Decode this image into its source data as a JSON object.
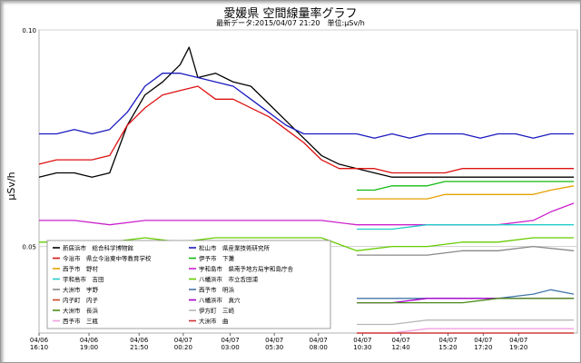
{
  "chart_data": {
    "type": "line",
    "title": "愛媛県 空間線量率グラフ",
    "subtitle": "最新データ:2015/04/07 21:20　単位:μSv/h",
    "ylabel": "μSv/h",
    "xlabel": "",
    "ylim": [
      0.03,
      0.1
    ],
    "yticks": [
      {
        "label": "0.10",
        "value": 0.1
      },
      {
        "label": "0.05",
        "value": 0.05
      }
    ],
    "x_range_hours": [
      0,
      30.5
    ],
    "xticks": [
      {
        "date": "04/06",
        "time": "16:10",
        "hour": 0
      },
      {
        "date": "04/06",
        "time": "19:00",
        "hour": 2.83
      },
      {
        "date": "04/06",
        "time": "21:50",
        "hour": 5.67
      },
      {
        "date": "04/07",
        "time": "00:20",
        "hour": 8.17
      },
      {
        "date": "04/07",
        "time": "03:00",
        "hour": 10.83
      },
      {
        "date": "04/07",
        "time": "05:30",
        "hour": 13.33
      },
      {
        "date": "04/07",
        "time": "08:00",
        "hour": 15.83
      },
      {
        "date": "04/07",
        "time": "10:30",
        "hour": 18.33
      },
      {
        "date": "04/07",
        "time": "12:40",
        "hour": 20.5
      },
      {
        "date": "04/07",
        "time": "15:20",
        "hour": 23.17
      },
      {
        "date": "04/07",
        "time": "17:20",
        "hour": 25.17
      },
      {
        "date": "04/07",
        "time": "19:20",
        "hour": 27.17
      }
    ],
    "grid": "horizontal",
    "legend_position": "lower-left",
    "series": [
      {
        "name": "新居浜市　総合科学博物館",
        "color": "#000000",
        "x": [
          0,
          1,
          2,
          3,
          4,
          5,
          6,
          7,
          8,
          8.5,
          9,
          10,
          11,
          12,
          13,
          14,
          15,
          16,
          17,
          18,
          19,
          20,
          21,
          22,
          23,
          24,
          25,
          26,
          27,
          28,
          29,
          30.3
        ],
        "values": [
          0.066,
          0.067,
          0.067,
          0.066,
          0.067,
          0.078,
          0.085,
          0.088,
          0.092,
          0.096,
          0.089,
          0.09,
          0.088,
          0.087,
          0.083,
          0.079,
          0.075,
          0.071,
          0.069,
          0.068,
          0.067,
          0.066,
          0.066,
          0.066,
          0.066,
          0.066,
          0.066,
          0.066,
          0.066,
          0.066,
          0.066,
          0.066
        ]
      },
      {
        "name": "松山市　県産業技術研究所",
        "color": "#1a1abf",
        "x": [
          0,
          1,
          2,
          3,
          4,
          5,
          6,
          7,
          8,
          9,
          10,
          11,
          12,
          13,
          14,
          15,
          16,
          17,
          18,
          19,
          20,
          21,
          22,
          23,
          24,
          25,
          26,
          27,
          28,
          29,
          30.3
        ],
        "values": [
          0.076,
          0.076,
          0.077,
          0.076,
          0.077,
          0.081,
          0.087,
          0.09,
          0.09,
          0.089,
          0.088,
          0.087,
          0.084,
          0.081,
          0.078,
          0.076,
          0.076,
          0.076,
          0.076,
          0.075,
          0.076,
          0.075,
          0.076,
          0.076,
          0.076,
          0.075,
          0.076,
          0.076,
          0.075,
          0.076,
          0.076
        ]
      },
      {
        "name": "今治市　県立今治東中等教育学校",
        "color": "#dd1111",
        "x": [
          0,
          1,
          2,
          3,
          4,
          5,
          6,
          7,
          8,
          9,
          10,
          11,
          12,
          13,
          14,
          15,
          16,
          17,
          18,
          19,
          20,
          21,
          22,
          23,
          24,
          25,
          26,
          27,
          28,
          29,
          30.3
        ],
        "values": [
          0.069,
          0.07,
          0.07,
          0.07,
          0.071,
          0.078,
          0.082,
          0.085,
          0.086,
          0.087,
          0.084,
          0.084,
          0.082,
          0.08,
          0.077,
          0.074,
          0.07,
          0.068,
          0.068,
          0.068,
          0.067,
          0.067,
          0.067,
          0.067,
          0.068,
          0.068,
          0.068,
          0.068,
          0.068,
          0.068,
          0.068
        ]
      },
      {
        "name": "伊予市　下灘",
        "color": "#11bb11",
        "x": [
          18,
          19,
          20,
          21,
          22,
          23,
          24,
          25,
          26,
          27,
          28,
          29,
          30.3
        ],
        "values": [
          0.063,
          0.063,
          0.064,
          0.064,
          0.064,
          0.065,
          0.065,
          0.065,
          0.065,
          0.065,
          0.065,
          0.065,
          0.065
        ]
      },
      {
        "name": "西予市　野村",
        "color": "#e6a000",
        "x": [
          18,
          19,
          20,
          21,
          22,
          23,
          24,
          25,
          26,
          27,
          28,
          29,
          30.3
        ],
        "values": [
          0.061,
          0.061,
          0.061,
          0.061,
          0.061,
          0.062,
          0.062,
          0.062,
          0.062,
          0.062,
          0.062,
          0.063,
          0.064
        ]
      },
      {
        "name": "宇和島市　県南予地方局宇和島庁舎",
        "color": "#cc22cc",
        "x": [
          0,
          2,
          4,
          6,
          8,
          10,
          12,
          14,
          16,
          18,
          20,
          22,
          24,
          26,
          28,
          29,
          30.3
        ],
        "values": [
          0.056,
          0.056,
          0.055,
          0.056,
          0.056,
          0.056,
          0.056,
          0.056,
          0.056,
          0.055,
          0.055,
          0.055,
          0.055,
          0.055,
          0.056,
          0.058,
          0.06
        ]
      },
      {
        "name": "宇和島市　吉田",
        "color": "#22cccc",
        "x": [
          18,
          20,
          22,
          24,
          26,
          28,
          30.3
        ],
        "values": [
          0.054,
          0.054,
          0.055,
          0.055,
          0.055,
          0.055,
          0.055
        ]
      },
      {
        "name": "八幡浜市　市立舌田浦",
        "color": "#66cc00",
        "x": [
          0,
          2,
          4,
          6,
          8,
          10,
          12,
          14,
          16,
          18,
          20,
          22,
          24,
          26,
          28,
          30.3
        ],
        "values": [
          0.051,
          0.051,
          0.051,
          0.052,
          0.051,
          0.052,
          0.052,
          0.052,
          0.052,
          0.049,
          0.05,
          0.05,
          0.051,
          0.051,
          0.052,
          0.052
        ]
      },
      {
        "name": "大洲市　宇野",
        "color": "#888888",
        "x": [
          18,
          20,
          22,
          24,
          26,
          28,
          30.3
        ],
        "values": [
          0.048,
          0.048,
          0.048,
          0.049,
          0.049,
          0.05,
          0.049
        ]
      },
      {
        "name": "西予市　明浜",
        "color": "#4477aa",
        "x": [
          18,
          20,
          22,
          24,
          26,
          28,
          29,
          30.3
        ],
        "values": [
          0.038,
          0.038,
          0.038,
          0.038,
          0.038,
          0.039,
          0.04,
          0.039
        ]
      },
      {
        "name": "内子町　内子",
        "color": "#cc4422",
        "x": [
          18,
          20,
          22,
          24,
          26,
          28,
          30.3
        ],
        "values": [
          0.027,
          0.027,
          0.027,
          0.027,
          0.027,
          0.028,
          0.028
        ]
      },
      {
        "name": "八幡浜市　真穴",
        "color": "#aa00cc",
        "x": [
          18,
          20,
          22,
          24,
          26,
          28,
          30.3
        ],
        "values": [
          0.037,
          0.037,
          0.038,
          0.038,
          0.038,
          0.038,
          0.038
        ]
      },
      {
        "name": "大洲市　長浜",
        "color": "#4a8a1a",
        "x": [
          18,
          20,
          22,
          24,
          26,
          28,
          30.3
        ],
        "values": [
          0.037,
          0.037,
          0.037,
          0.037,
          0.038,
          0.038,
          0.038
        ]
      },
      {
        "name": "伊方町　三崎",
        "color": "#b8b8b8",
        "x": [
          18,
          20,
          22,
          24,
          26,
          28,
          30.3
        ],
        "values": [
          0.032,
          0.032,
          0.033,
          0.033,
          0.033,
          0.033,
          0.033
        ]
      },
      {
        "name": "西予市　三瓶",
        "color": "#f0a0e0",
        "x": [
          18,
          20,
          22,
          24,
          26,
          28,
          30.3
        ],
        "values": [
          0.03,
          0.03,
          0.031,
          0.031,
          0.031,
          0.031,
          0.031
        ]
      },
      {
        "name": "大洲市　曲",
        "color": "#cc3333",
        "x": [
          18,
          20,
          22,
          24,
          26,
          28,
          30.3
        ],
        "values": [
          0.028,
          0.028,
          0.028,
          0.028,
          0.028,
          0.029,
          0.029
        ]
      }
    ]
  }
}
